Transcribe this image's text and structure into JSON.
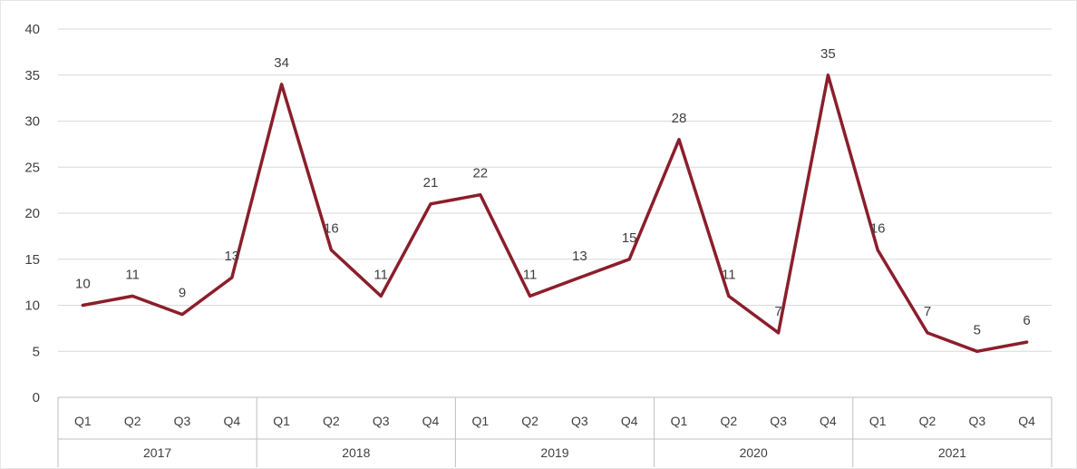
{
  "chart_data": {
    "type": "line",
    "title": "",
    "xlabel": "",
    "ylabel": "",
    "ylim": [
      0,
      40
    ],
    "yticks": [
      0,
      5,
      10,
      15,
      20,
      25,
      30,
      35,
      40
    ],
    "grid": true,
    "legend": "none",
    "line_color": "#8b1e2b",
    "groups": [
      {
        "year": "2017",
        "quarters": [
          "Q1",
          "Q2",
          "Q3",
          "Q4"
        ]
      },
      {
        "year": "2018",
        "quarters": [
          "Q1",
          "Q2",
          "Q3",
          "Q4"
        ]
      },
      {
        "year": "2019",
        "quarters": [
          "Q1",
          "Q2",
          "Q3",
          "Q4"
        ]
      },
      {
        "year": "2020",
        "quarters": [
          "Q1",
          "Q2",
          "Q3",
          "Q4"
        ]
      },
      {
        "year": "2021",
        "quarters": [
          "Q1",
          "Q2",
          "Q3",
          "Q4"
        ]
      }
    ],
    "values": [
      10,
      11,
      9,
      13,
      34,
      16,
      11,
      21,
      22,
      11,
      13,
      15,
      28,
      11,
      7,
      35,
      16,
      7,
      5,
      6
    ],
    "data_labels": [
      "10",
      "11",
      "9",
      "13",
      "34",
      "16",
      "11",
      "21",
      "22",
      "11",
      "13",
      "15",
      "28",
      "11",
      "7",
      "35",
      "16",
      "7",
      "5",
      "6"
    ]
  }
}
